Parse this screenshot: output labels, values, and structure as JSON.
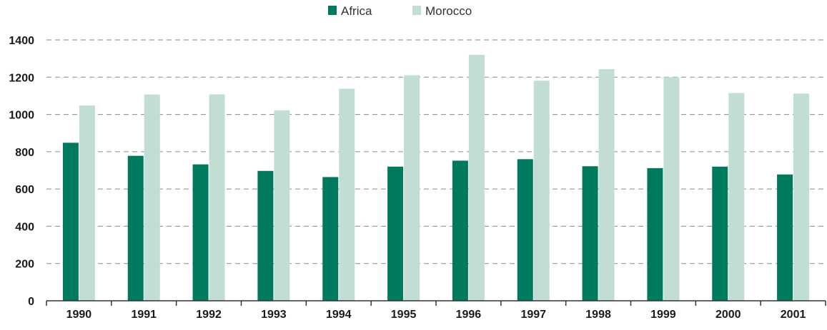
{
  "chart_data": {
    "type": "bar",
    "categories": [
      "1990",
      "1991",
      "1992",
      "1993",
      "1994",
      "1995",
      "1996",
      "1997",
      "1998",
      "1999",
      "2000",
      "2001"
    ],
    "series": [
      {
        "name": "Africa",
        "color": "#007a5e",
        "values": [
          848,
          778,
          732,
          697,
          664,
          720,
          752,
          760,
          722,
          712,
          720,
          678
        ]
      },
      {
        "name": "Morocco",
        "color": "#c2ddd4",
        "values": [
          1048,
          1107,
          1108,
          1022,
          1138,
          1210,
          1320,
          1181,
          1243,
          1200,
          1115,
          1112
        ]
      }
    ],
    "yticks": [
      0,
      200,
      400,
      600,
      800,
      1000,
      1200,
      1400
    ],
    "ylim": [
      0,
      1400
    ],
    "grid": true,
    "legend_position": "top-center"
  }
}
